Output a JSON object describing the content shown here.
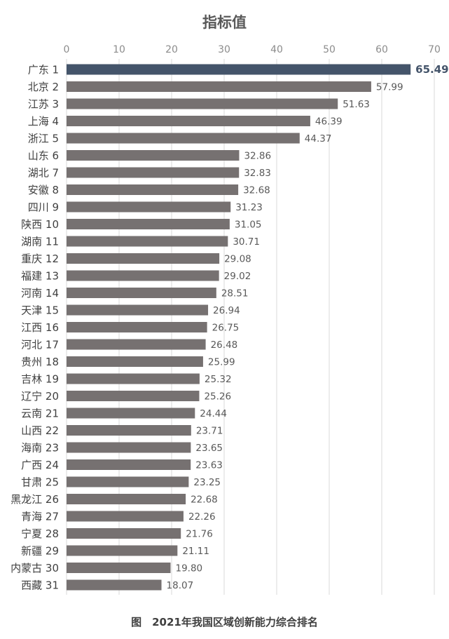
{
  "chart_data": {
    "type": "bar",
    "orientation": "horizontal",
    "title": "指标值",
    "caption": "图　2021年我国区域创新能力综合排名",
    "xlim": [
      0,
      70
    ],
    "xticks": [
      "0",
      "10",
      "20",
      "30",
      "40",
      "50",
      "60",
      "70"
    ],
    "grid": true,
    "categories": [
      "广东 1",
      "北京 2",
      "江苏 3",
      "上海 4",
      "浙江 5",
      "山东 6",
      "湖北 7",
      "安徽 8",
      "四川 9",
      "陕西 10",
      "湖南 11",
      "重庆 12",
      "福建 13",
      "河南 14",
      "天津 15",
      "江西 16",
      "河北 17",
      "贵州 18",
      "吉林 19",
      "辽宁 20",
      "云南 21",
      "山西 22",
      "海南 23",
      "广西 24",
      "甘肃 25",
      "黑龙江 26",
      "青海 27",
      "宁夏 28",
      "新疆 29",
      "内蒙古 30",
      "西藏 31"
    ],
    "values": [
      65.49,
      57.99,
      51.63,
      46.39,
      44.37,
      32.86,
      32.83,
      32.68,
      31.23,
      31.05,
      30.71,
      29.08,
      29.02,
      28.51,
      26.94,
      26.75,
      26.48,
      25.99,
      25.32,
      25.26,
      24.44,
      23.71,
      23.65,
      23.63,
      23.25,
      22.68,
      22.26,
      21.76,
      21.11,
      19.8,
      18.07
    ],
    "value_labels": [
      "65.49",
      "57.99",
      "51.63",
      "46.39",
      "44.37",
      "32.86",
      "32.83",
      "32.68",
      "31.23",
      "31.05",
      "30.71",
      "29.08",
      "29.02",
      "28.51",
      "26.94",
      "26.75",
      "26.48",
      "25.99",
      "25.32",
      "25.26",
      "24.44",
      "23.71",
      "23.65",
      "23.63",
      "23.25",
      "22.68",
      "22.26",
      "21.76",
      "21.11",
      "19.80",
      "18.07"
    ],
    "highlight_index": 0,
    "colors": {
      "bar": "#767171",
      "highlight": "#44546a",
      "grid": "#d9d9d9",
      "text": "#595959",
      "highlight_text": "#44546a"
    }
  }
}
